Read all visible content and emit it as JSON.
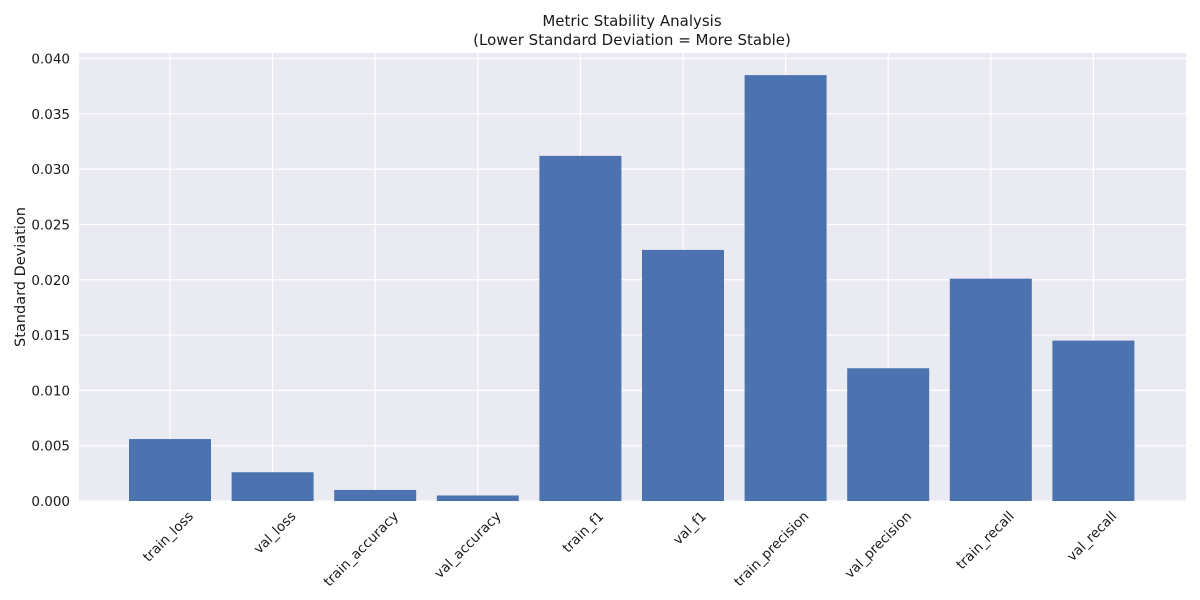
{
  "chart_data": {
    "type": "bar",
    "title": "Metric Stability Analysis",
    "subtitle": "(Lower Standard Deviation = More Stable)",
    "xlabel": "",
    "ylabel": "Standard Deviation",
    "categories": [
      "train_loss",
      "val_loss",
      "train_accuracy",
      "val_accuracy",
      "train_f1",
      "val_f1",
      "train_precision",
      "val_precision",
      "train_recall",
      "val_recall"
    ],
    "values": [
      0.0056,
      0.0026,
      0.001,
      0.0005,
      0.0312,
      0.0227,
      0.0385,
      0.012,
      0.0201,
      0.0145
    ],
    "ylim": [
      0,
      0.0405
    ],
    "yticks": [
      "0.000",
      "0.005",
      "0.010",
      "0.015",
      "0.020",
      "0.025",
      "0.030",
      "0.035",
      "0.040"
    ],
    "grid": true,
    "colors": {
      "bar": "#4c72b0",
      "plot_background": "#eaeaf2",
      "grid": "#ffffff"
    }
  }
}
